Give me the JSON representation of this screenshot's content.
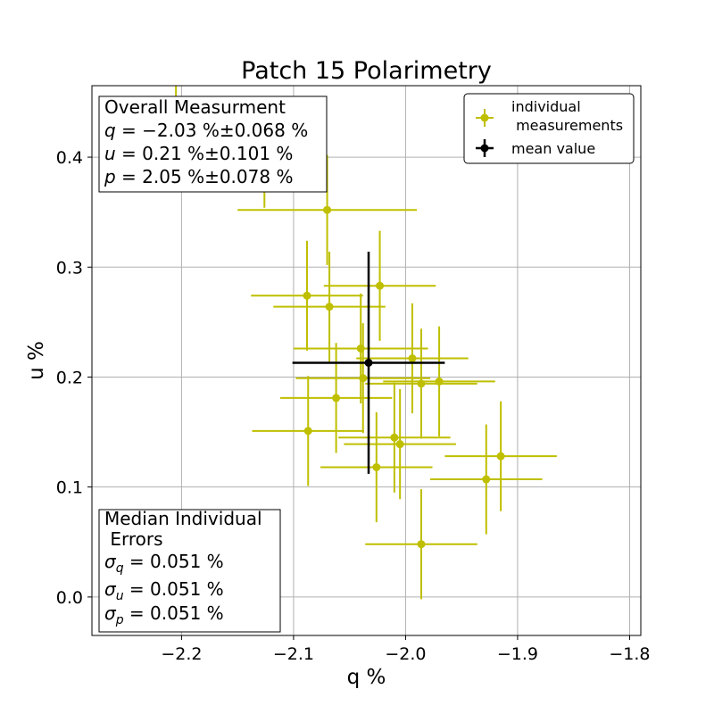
{
  "chart_data": {
    "type": "scatter",
    "title": "Patch 15 Polarimetry",
    "xlabel": "q %",
    "ylabel": "u %",
    "xlim": [
      -2.28,
      -1.79
    ],
    "ylim": [
      -0.035,
      0.465
    ],
    "xticks": [
      -2.2,
      -2.1,
      -2.0,
      -1.9,
      -1.8
    ],
    "xtick_labels": [
      "−2.2",
      "−2.1",
      "−2.0",
      "−1.9",
      "−1.8"
    ],
    "yticks": [
      0.0,
      0.1,
      0.2,
      0.3,
      0.4
    ],
    "ytick_labels": [
      "0.0",
      "0.1",
      "0.2",
      "0.3",
      "0.4"
    ],
    "grid": true,
    "legend_position": "top-right",
    "colors": {
      "individual": "#bfbf00",
      "mean": "#000000"
    },
    "series": [
      {
        "name": "individual\n measurements",
        "x": [
          -2.07,
          -2.088,
          -2.068,
          -2.023,
          -2.04,
          -1.994,
          -2.038,
          -1.986,
          -1.97,
          -2.062,
          -2.087,
          -2.01,
          -2.005,
          -1.928,
          -1.915,
          -2.026,
          -1.986,
          -2.205,
          -2.126
        ],
        "y": [
          0.352,
          0.274,
          0.264,
          0.283,
          0.226,
          0.217,
          0.199,
          0.194,
          0.196,
          0.181,
          0.151,
          0.145,
          0.139,
          0.107,
          0.128,
          0.118,
          0.048,
          0.452,
          0.404
        ],
        "xerr": [
          0.08,
          0.05,
          0.05,
          0.05,
          0.06,
          0.05,
          0.06,
          0.05,
          0.05,
          0.05,
          0.05,
          0.05,
          0.05,
          0.05,
          0.05,
          0.05,
          0.05,
          0.05,
          0.05
        ],
        "yerr": [
          0.05,
          0.05,
          0.05,
          0.05,
          0.05,
          0.05,
          0.05,
          0.05,
          0.05,
          0.05,
          0.05,
          0.05,
          0.05,
          0.05,
          0.05,
          0.05,
          0.05,
          0.05,
          0.05
        ]
      },
      {
        "name": "mean value",
        "x": [
          -2.033
        ],
        "y": [
          0.213
        ],
        "xerr": [
          0.068
        ],
        "yerr": [
          0.101
        ]
      }
    ],
    "overall_box": {
      "heading": "Overall Measurment",
      "lines": [
        {
          "sym": "q",
          "sub": "",
          "value": " = −2.03 %±0.068 %"
        },
        {
          "sym": "u",
          "sub": "",
          "value": " = 0.21 %±0.101 %"
        },
        {
          "sym": "p",
          "sub": "",
          "value": " = 2.05 %±0.078 %"
        }
      ]
    },
    "median_box": {
      "heading_line1": "Median Individual",
      "heading_line2": " Errors",
      "lines": [
        {
          "sym": "σ",
          "sub": "q",
          "value": " = 0.051 %"
        },
        {
          "sym": "σ",
          "sub": "u",
          "value": " = 0.051 %"
        },
        {
          "sym": "σ",
          "sub": "p",
          "value": " = 0.051 %"
        }
      ]
    },
    "legend": {
      "items": [
        {
          "label_line1": "individual",
          "label_line2": " measurements"
        },
        {
          "label_line1": "mean value",
          "label_line2": ""
        }
      ]
    }
  }
}
